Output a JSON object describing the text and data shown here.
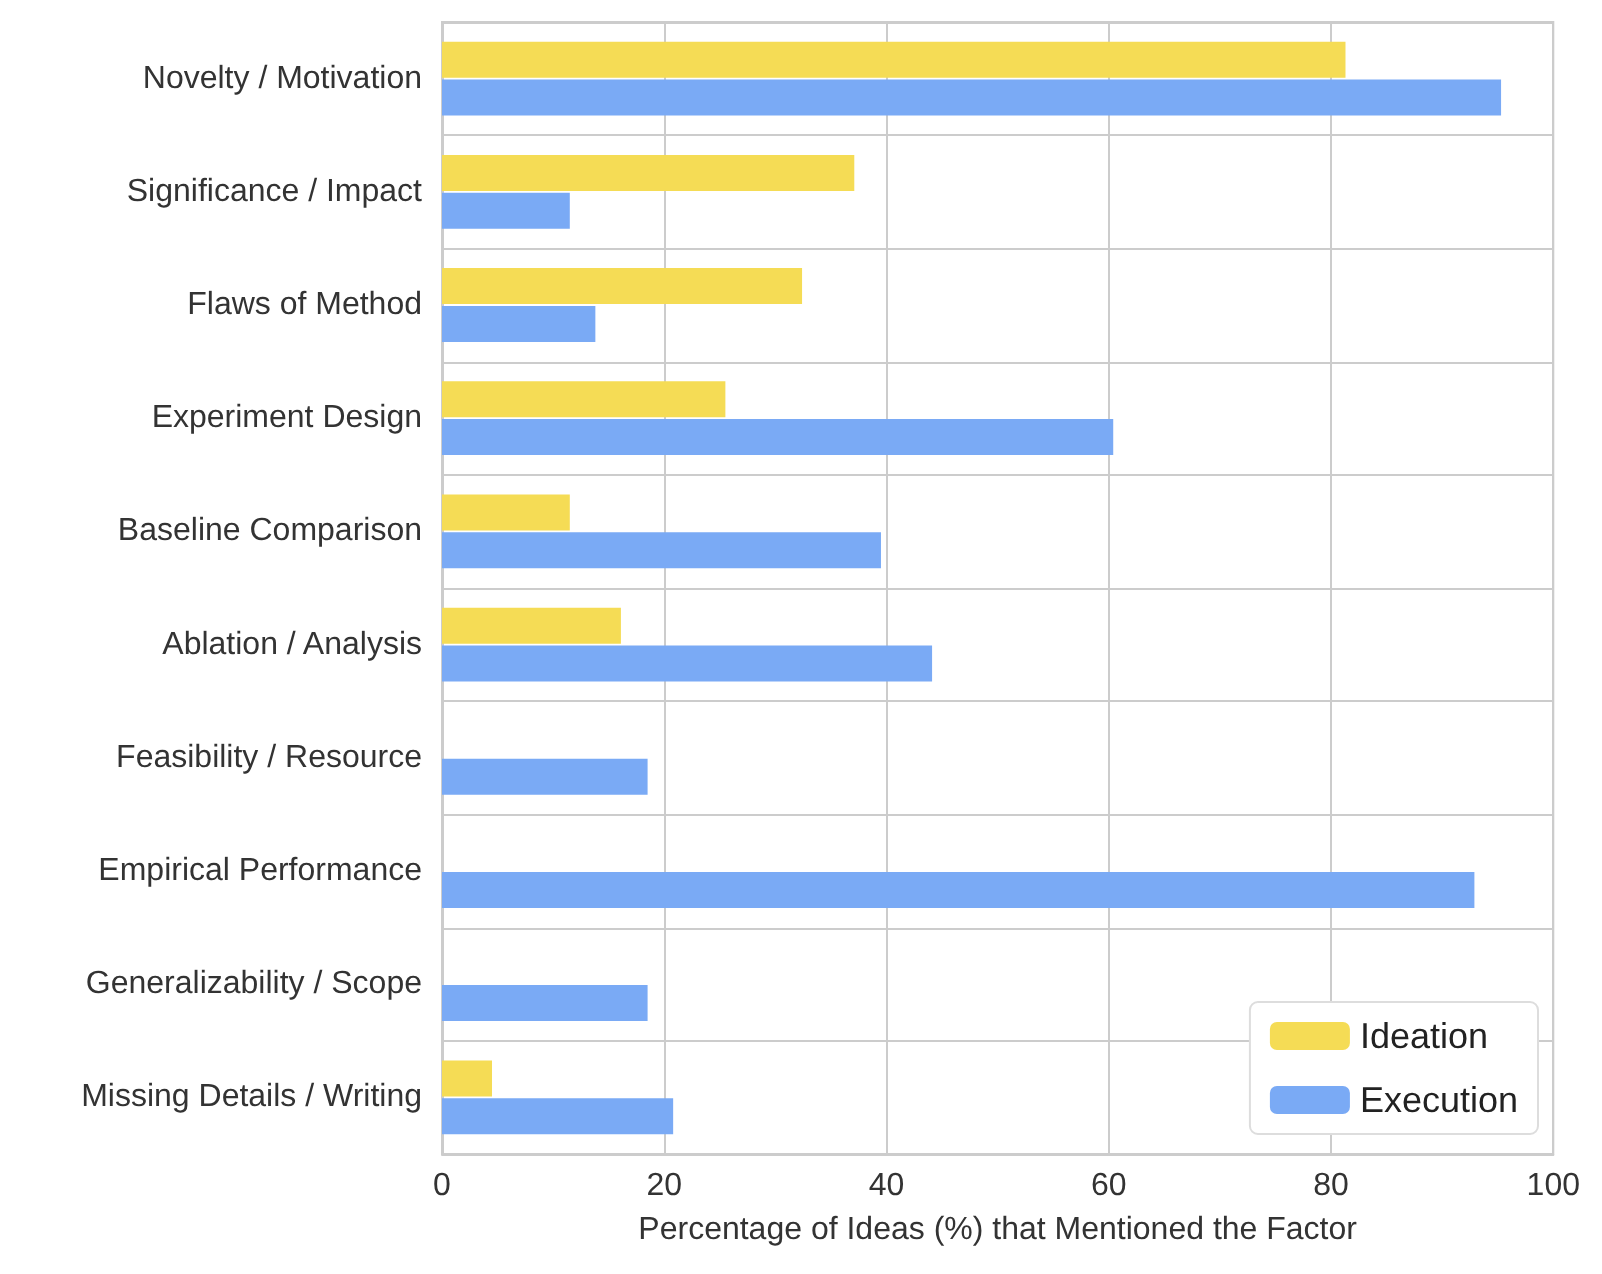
{
  "chart_data": {
    "type": "bar",
    "orientation": "horizontal",
    "xlabel": "Percentage of Ideas (%) that Mentioned the Factor",
    "categories": [
      "Novelty / Motivation",
      "Significance / Impact",
      "Flaws of Method",
      "Experiment Design",
      "Baseline Comparison",
      "Ablation / Analysis",
      "Feasibility / Resource",
      "Empirical Performance",
      "Generalizability / Scope",
      "Missing Details / Writing"
    ],
    "series": [
      {
        "name": "Ideation",
        "color": "#f5dc55",
        "values": [
          81.3,
          37.1,
          32.4,
          25.5,
          11.5,
          16.1,
          0,
          0,
          0,
          4.5
        ]
      },
      {
        "name": "Execution",
        "color": "#7aaaf5",
        "values": [
          95.3,
          11.5,
          13.8,
          60.4,
          39.5,
          44.1,
          18.5,
          92.9,
          18.5,
          20.8
        ]
      }
    ],
    "xlim": [
      0,
      100
    ],
    "xticks": [
      0,
      20,
      40,
      60,
      80,
      100
    ],
    "grid": true,
    "legend": "bottom right"
  }
}
